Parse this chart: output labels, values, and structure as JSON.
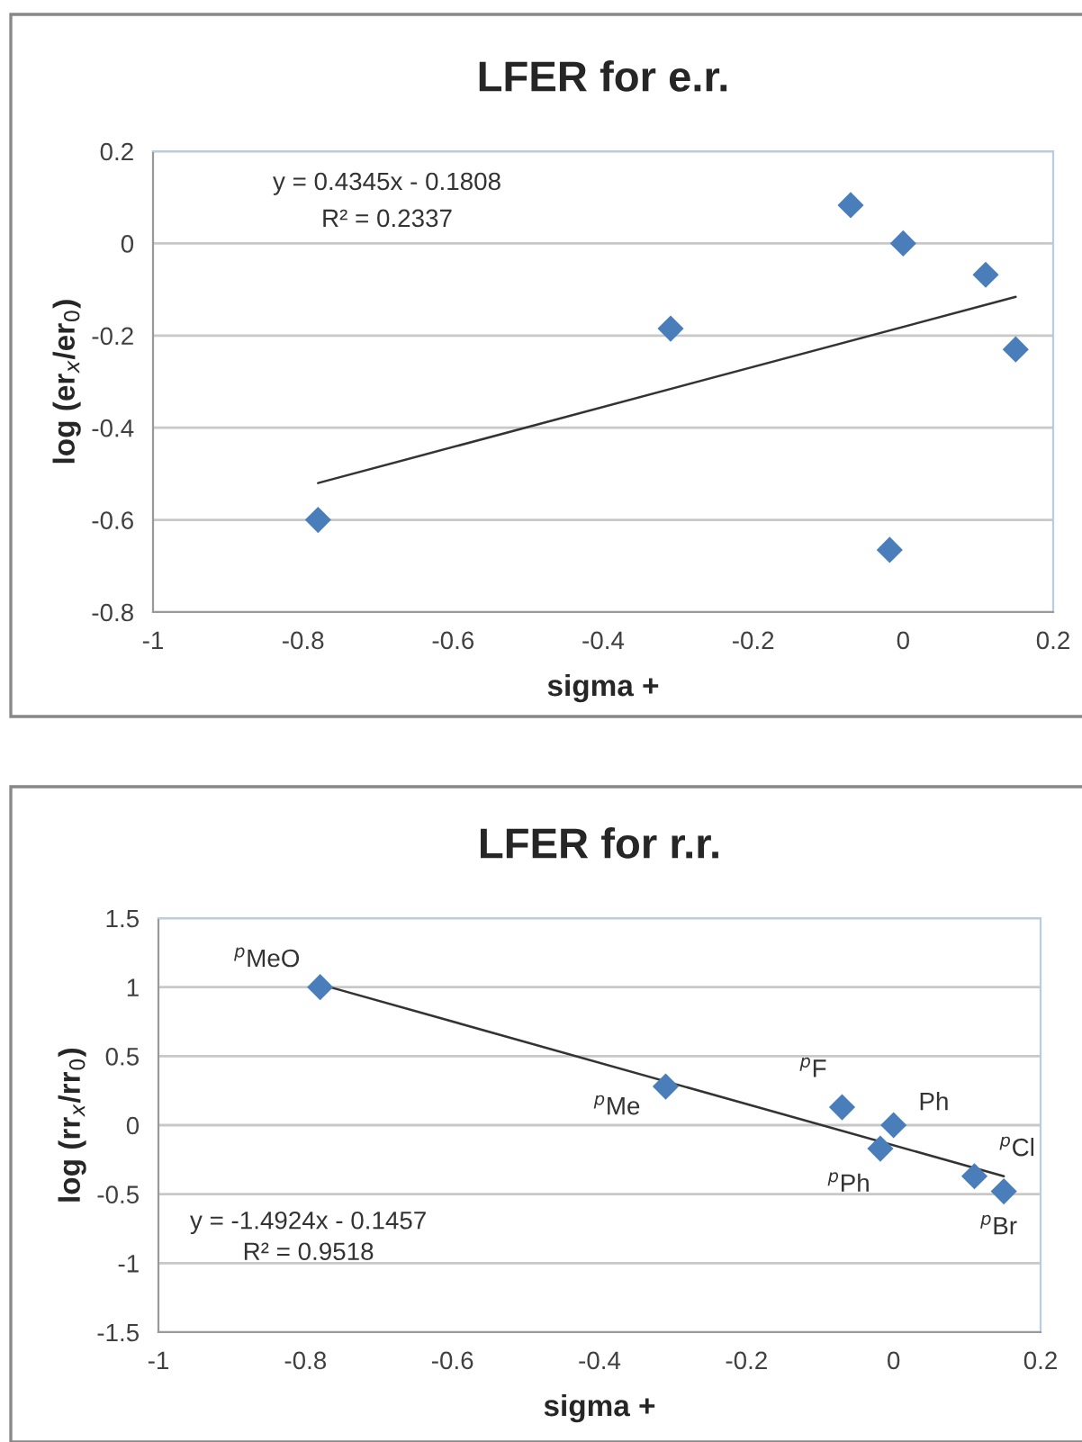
{
  "chart_data": [
    {
      "type": "scatter",
      "title": "LFER for e.r.",
      "xlabel": "sigma +",
      "ylabel": "log (er$_{x}$/er$_{0}$)",
      "xlim": [
        -1,
        0.2
      ],
      "xticks": [
        -1,
        -0.8,
        -0.6,
        -0.4,
        -0.2,
        0,
        0.2
      ],
      "ylim": [
        -0.8,
        0.2
      ],
      "yticks": [
        -0.8,
        -0.6,
        -0.4,
        -0.2,
        0,
        0.2
      ],
      "grid": "y",
      "series": [
        {
          "marker": "diamond",
          "color": "#4a7ebb",
          "x": [
            -0.78,
            -0.31,
            -0.07,
            0,
            -0.018,
            0.11,
            0.15
          ],
          "values": [
            -0.6,
            -0.185,
            0.083,
            0,
            -0.665,
            -0.068,
            -0.23
          ]
        },
        {
          "type": "line",
          "color": "#333333",
          "x": [
            -0.78,
            0.15
          ],
          "values": [
            -0.52,
            -0.116
          ]
        }
      ],
      "annotations": [
        "y = 0.4345x - 0.1808",
        "R² = 0.2337"
      ]
    },
    {
      "type": "scatter",
      "title": "LFER for r.r.",
      "xlabel": "sigma +",
      "ylabel": "log (rr$_{x}$/rr$_{0}$)",
      "xlim": [
        -1,
        0.2
      ],
      "xticks": [
        -1,
        -0.8,
        -0.6,
        -0.4,
        -0.2,
        0,
        0.2
      ],
      "ylim": [
        -1.5,
        1.5
      ],
      "yticks": [
        -1.5,
        -1,
        -0.5,
        0,
        0.5,
        1,
        1.5
      ],
      "grid": "y",
      "series": [
        {
          "marker": "diamond",
          "color": "#4a7ebb",
          "x": [
            -0.78,
            -0.31,
            -0.07,
            0,
            -0.018,
            0.11,
            0.15
          ],
          "values": [
            1.0,
            0.28,
            0.13,
            0,
            -0.17,
            -0.37,
            -0.48
          ]
        },
        {
          "type": "line",
          "color": "#333333",
          "x": [
            -0.78,
            0.15
          ],
          "values": [
            1.02,
            -0.37
          ]
        }
      ],
      "annotations": [
        "y = -1.4924x - 0.1457",
        "R² = 0.9518",
        {
          "text": "$^{p}$MeO",
          "x": -0.78,
          "y": 1.0
        },
        {
          "text": "$^{p}$Me",
          "x": -0.31,
          "y": 0.28
        },
        {
          "text": "$^{p}$F",
          "x": -0.07,
          "y": 0.13
        },
        {
          "text": "Ph",
          "x": 0,
          "y": 0
        },
        {
          "text": "$^{p}$Ph",
          "x": -0.018,
          "y": -0.17
        },
        {
          "text": "$^{p}$Cl",
          "x": 0.11,
          "y": -0.37
        },
        {
          "text": "$^{p}$Br",
          "x": 0.15,
          "y": -0.48
        }
      ]
    }
  ]
}
